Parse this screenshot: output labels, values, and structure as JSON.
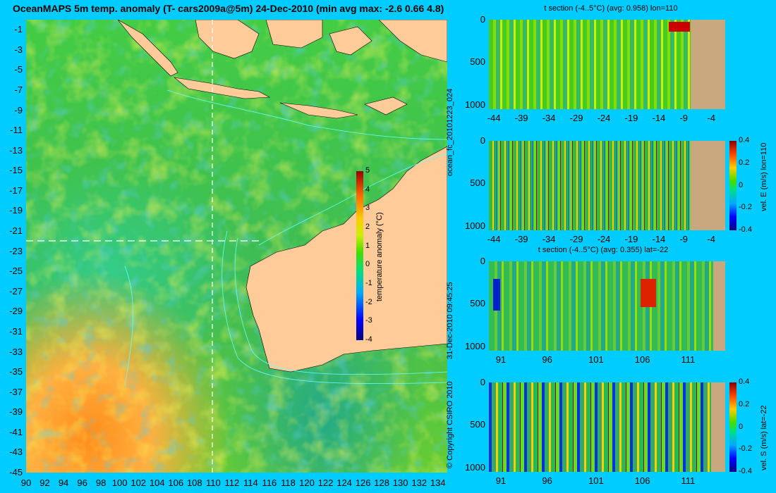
{
  "title": "OceanMAPS 5m temp. anomaly (T- cars2009a@5m) 24-Dec-2010 (min avg max: -2.6 0.66 4.8)",
  "map": {
    "lat_ticks": [
      "-1",
      "-3",
      "-5",
      "-7",
      "-9",
      "-11",
      "-13",
      "-15",
      "-17",
      "-19",
      "-21",
      "-23",
      "-25",
      "-27",
      "-29",
      "-31",
      "-33",
      "-35",
      "-37",
      "-39",
      "-41",
      "-43",
      "-45"
    ],
    "lon_ticks": [
      "90",
      "92",
      "94",
      "96",
      "98",
      "100",
      "102",
      "104",
      "106",
      "108",
      "110",
      "112",
      "114",
      "116",
      "118",
      "120",
      "122",
      "124",
      "126",
      "128",
      "130",
      "132",
      "134"
    ],
    "colorbar_label": "temperature anomaly (°C)",
    "colorbar_ticks": [
      "5",
      "4",
      "3",
      "2",
      "1",
      "0",
      "-1",
      "-2",
      "-3",
      "-4"
    ],
    "land_color": "#ffcc99",
    "contour_color": "#66ffff"
  },
  "side_text": {
    "run": "ocean_fc_20101223_024",
    "timestamp": "31-Dec-2010 09:45:25",
    "copyright": "© Copyright CSIRO 2010"
  },
  "panels": [
    {
      "title": "t section (-4..5°C) (avg: 0.958) lon=110",
      "yticks": [
        "0",
        "500",
        "1000"
      ],
      "xticks": [
        "-44",
        "-39",
        "-34",
        "-29",
        "-24",
        "-19",
        "-14",
        "-9",
        "-4"
      ]
    },
    {
      "title": "",
      "yticks": [
        "0",
        "500",
        "1000"
      ],
      "xticks": [
        "-44",
        "-39",
        "-34",
        "-29",
        "-24",
        "-19",
        "-14",
        "-9",
        "-4"
      ],
      "colorbar_label": "vel. E (m/s) lon=110",
      "colorbar_ticks": [
        "0.4",
        "0.2",
        "0",
        "-0.2",
        "-0.4"
      ]
    },
    {
      "title": "t section (-4..5°C) (avg: 0.355) lat=-22",
      "yticks": [
        "0",
        "500",
        "1000"
      ],
      "xticks": [
        "91",
        "96",
        "101",
        "106",
        "111"
      ]
    },
    {
      "title": "",
      "yticks": [
        "0",
        "500",
        "1000"
      ],
      "xticks": [
        "91",
        "96",
        "101",
        "106",
        "111"
      ],
      "colorbar_label": "vel. S (m/s) lat=-22",
      "colorbar_ticks": [
        "0.4",
        "0.2",
        "0",
        "-0.2",
        "-0.4"
      ]
    }
  ],
  "chart_data": [
    {
      "type": "heatmap",
      "title": "OceanMAPS 5m temp. anomaly (T- cars2009a@5m) 24-Dec-2010 (min avg max: -2.6 0.66 4.8)",
      "xlabel": "",
      "ylabel": "",
      "xlim": [
        90,
        135
      ],
      "ylim": [
        -45,
        0
      ],
      "colorbar": {
        "label": "temperature anomaly (°C)",
        "range": [
          -4,
          5
        ]
      },
      "summary": {
        "min": -2.6,
        "avg": 0.66,
        "max": 4.8
      },
      "section_lines": {
        "lon": 110,
        "lat": -22
      }
    },
    {
      "type": "heatmap",
      "title": "t section (-4..5°C) (avg: 0.958) lon=110",
      "xlim": [
        -45,
        -2
      ],
      "ylim": [
        1050,
        0
      ],
      "avg": 0.958
    },
    {
      "type": "heatmap",
      "title": "",
      "xlim": [
        -45,
        -2
      ],
      "ylim": [
        1050,
        0
      ],
      "colorbar": {
        "label": "vel. E (m/s) lon=110",
        "range": [
          -0.4,
          0.4
        ]
      }
    },
    {
      "type": "heatmap",
      "title": "t section (-4..5°C) (avg: 0.355) lat=-22",
      "xlim": [
        89.5,
        115
      ],
      "ylim": [
        1050,
        0
      ],
      "avg": 0.355
    },
    {
      "type": "heatmap",
      "title": "",
      "xlim": [
        89.5,
        115
      ],
      "ylim": [
        1050,
        0
      ],
      "colorbar": {
        "label": "vel. S (m/s) lat=-22",
        "range": [
          -0.4,
          0.4
        ]
      }
    }
  ]
}
